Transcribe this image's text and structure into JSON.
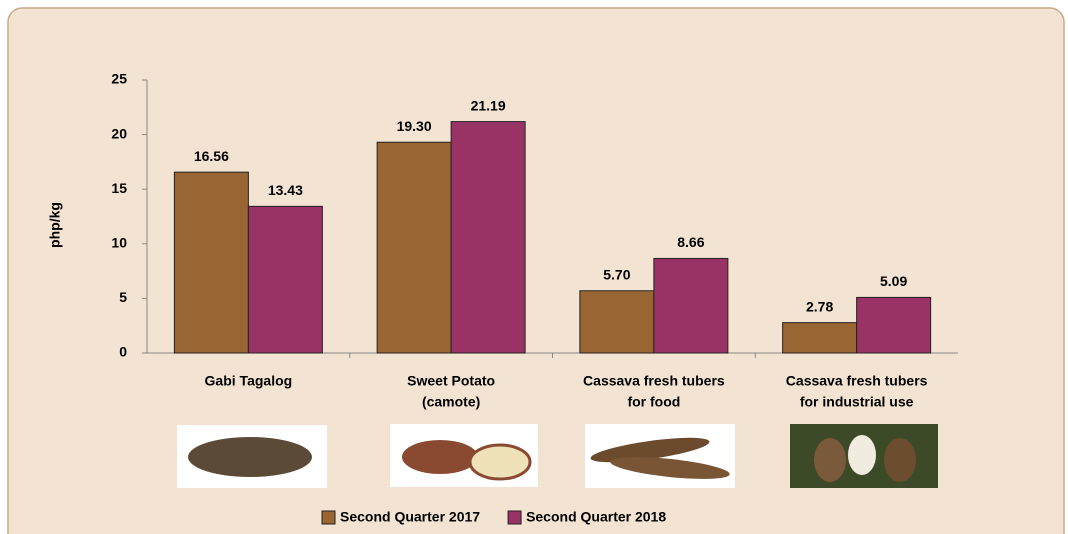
{
  "chart_data": {
    "type": "bar",
    "y_label": "php/kg",
    "categories": [
      [
        "Gabi Tagalog"
      ],
      [
        "Sweet Potato",
        "(camote)"
      ],
      [
        "Cassava fresh tubers",
        "for food"
      ],
      [
        "Cassava fresh tubers",
        "for industrial use"
      ]
    ],
    "series": [
      {
        "name": "Second Quarter 2017",
        "color": "#996633",
        "values": [
          16.56,
          19.3,
          5.7,
          2.78
        ],
        "value_labels": [
          "16.56",
          "19.30",
          "5.70",
          "2.78"
        ]
      },
      {
        "name": "Second Quarter 2018",
        "color": "#993366",
        "values": [
          13.43,
          21.19,
          8.66,
          5.09
        ],
        "value_labels": [
          "13.43",
          "21.19",
          "8.66",
          "5.09"
        ]
      }
    ],
    "ylim": [
      0,
      25
    ],
    "yticks": [
      0,
      5,
      10,
      15,
      20,
      25
    ],
    "grid": false,
    "legend": "bottom"
  }
}
